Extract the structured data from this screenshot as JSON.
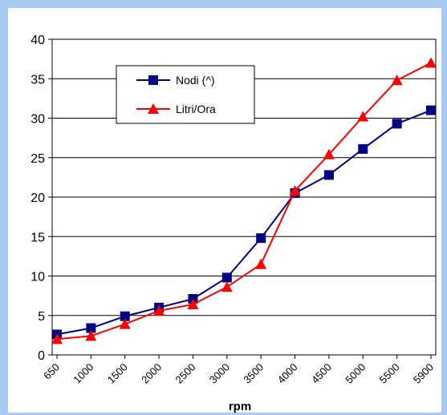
{
  "chart_data": {
    "type": "line",
    "categories": [
      "650",
      "1000",
      "1500",
      "2000",
      "2500",
      "3000",
      "3500",
      "4000",
      "4500",
      "5000",
      "5500",
      "5900"
    ],
    "series": [
      {
        "name": "Nodi (^)",
        "color": "#000080",
        "marker": "square",
        "values": [
          2.6,
          3.4,
          4.9,
          6.0,
          7.1,
          9.8,
          14.8,
          20.5,
          22.8,
          26.1,
          29.3,
          31.0
        ]
      },
      {
        "name": "Litri/Ora",
        "color": "#ff0000",
        "marker": "triangle",
        "values": [
          2.0,
          2.4,
          3.9,
          5.6,
          6.4,
          8.6,
          11.5,
          20.8,
          25.4,
          30.2,
          34.8,
          37.0
        ]
      }
    ],
    "yticks": [
      "0",
      "5",
      "10",
      "15",
      "20",
      "25",
      "30",
      "35",
      "40"
    ],
    "ylim": [
      0,
      40
    ],
    "xlabel": "rpm",
    "legend_position": "top-left",
    "grid": "horizontal",
    "frame_color": "#a6caf0"
  }
}
